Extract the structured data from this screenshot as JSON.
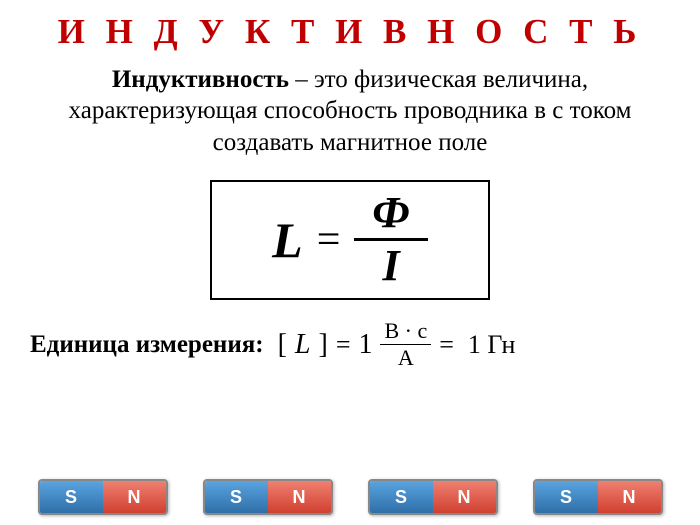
{
  "title": "И Н Д У К Т И В Н О С Т Ь",
  "definition": {
    "term": "Индуктивность",
    "rest": " – это физическая величина, характеризующая способность проводника в с током  создавать магнитное поле"
  },
  "formula": {
    "lhs": "L",
    "eq": "=",
    "numerator": "Ф",
    "denominator": "I"
  },
  "units": {
    "label": "Единица измерения:",
    "bracket_open": "[",
    "var": "L",
    "bracket_close": "]",
    "eq1": "=",
    "one1": "1",
    "frac_num": "В · с",
    "frac_den": "А",
    "eq2": "=",
    "one2": "1",
    "gn": "Гн"
  },
  "magnet": {
    "s": "S",
    "n": "N"
  },
  "colors": {
    "title": "#c00000",
    "text": "#000000",
    "magnet_s_top": "#5aa4e0",
    "magnet_s_bot": "#2f6fa8",
    "magnet_n_top": "#f08070",
    "magnet_n_bot": "#d04030"
  }
}
